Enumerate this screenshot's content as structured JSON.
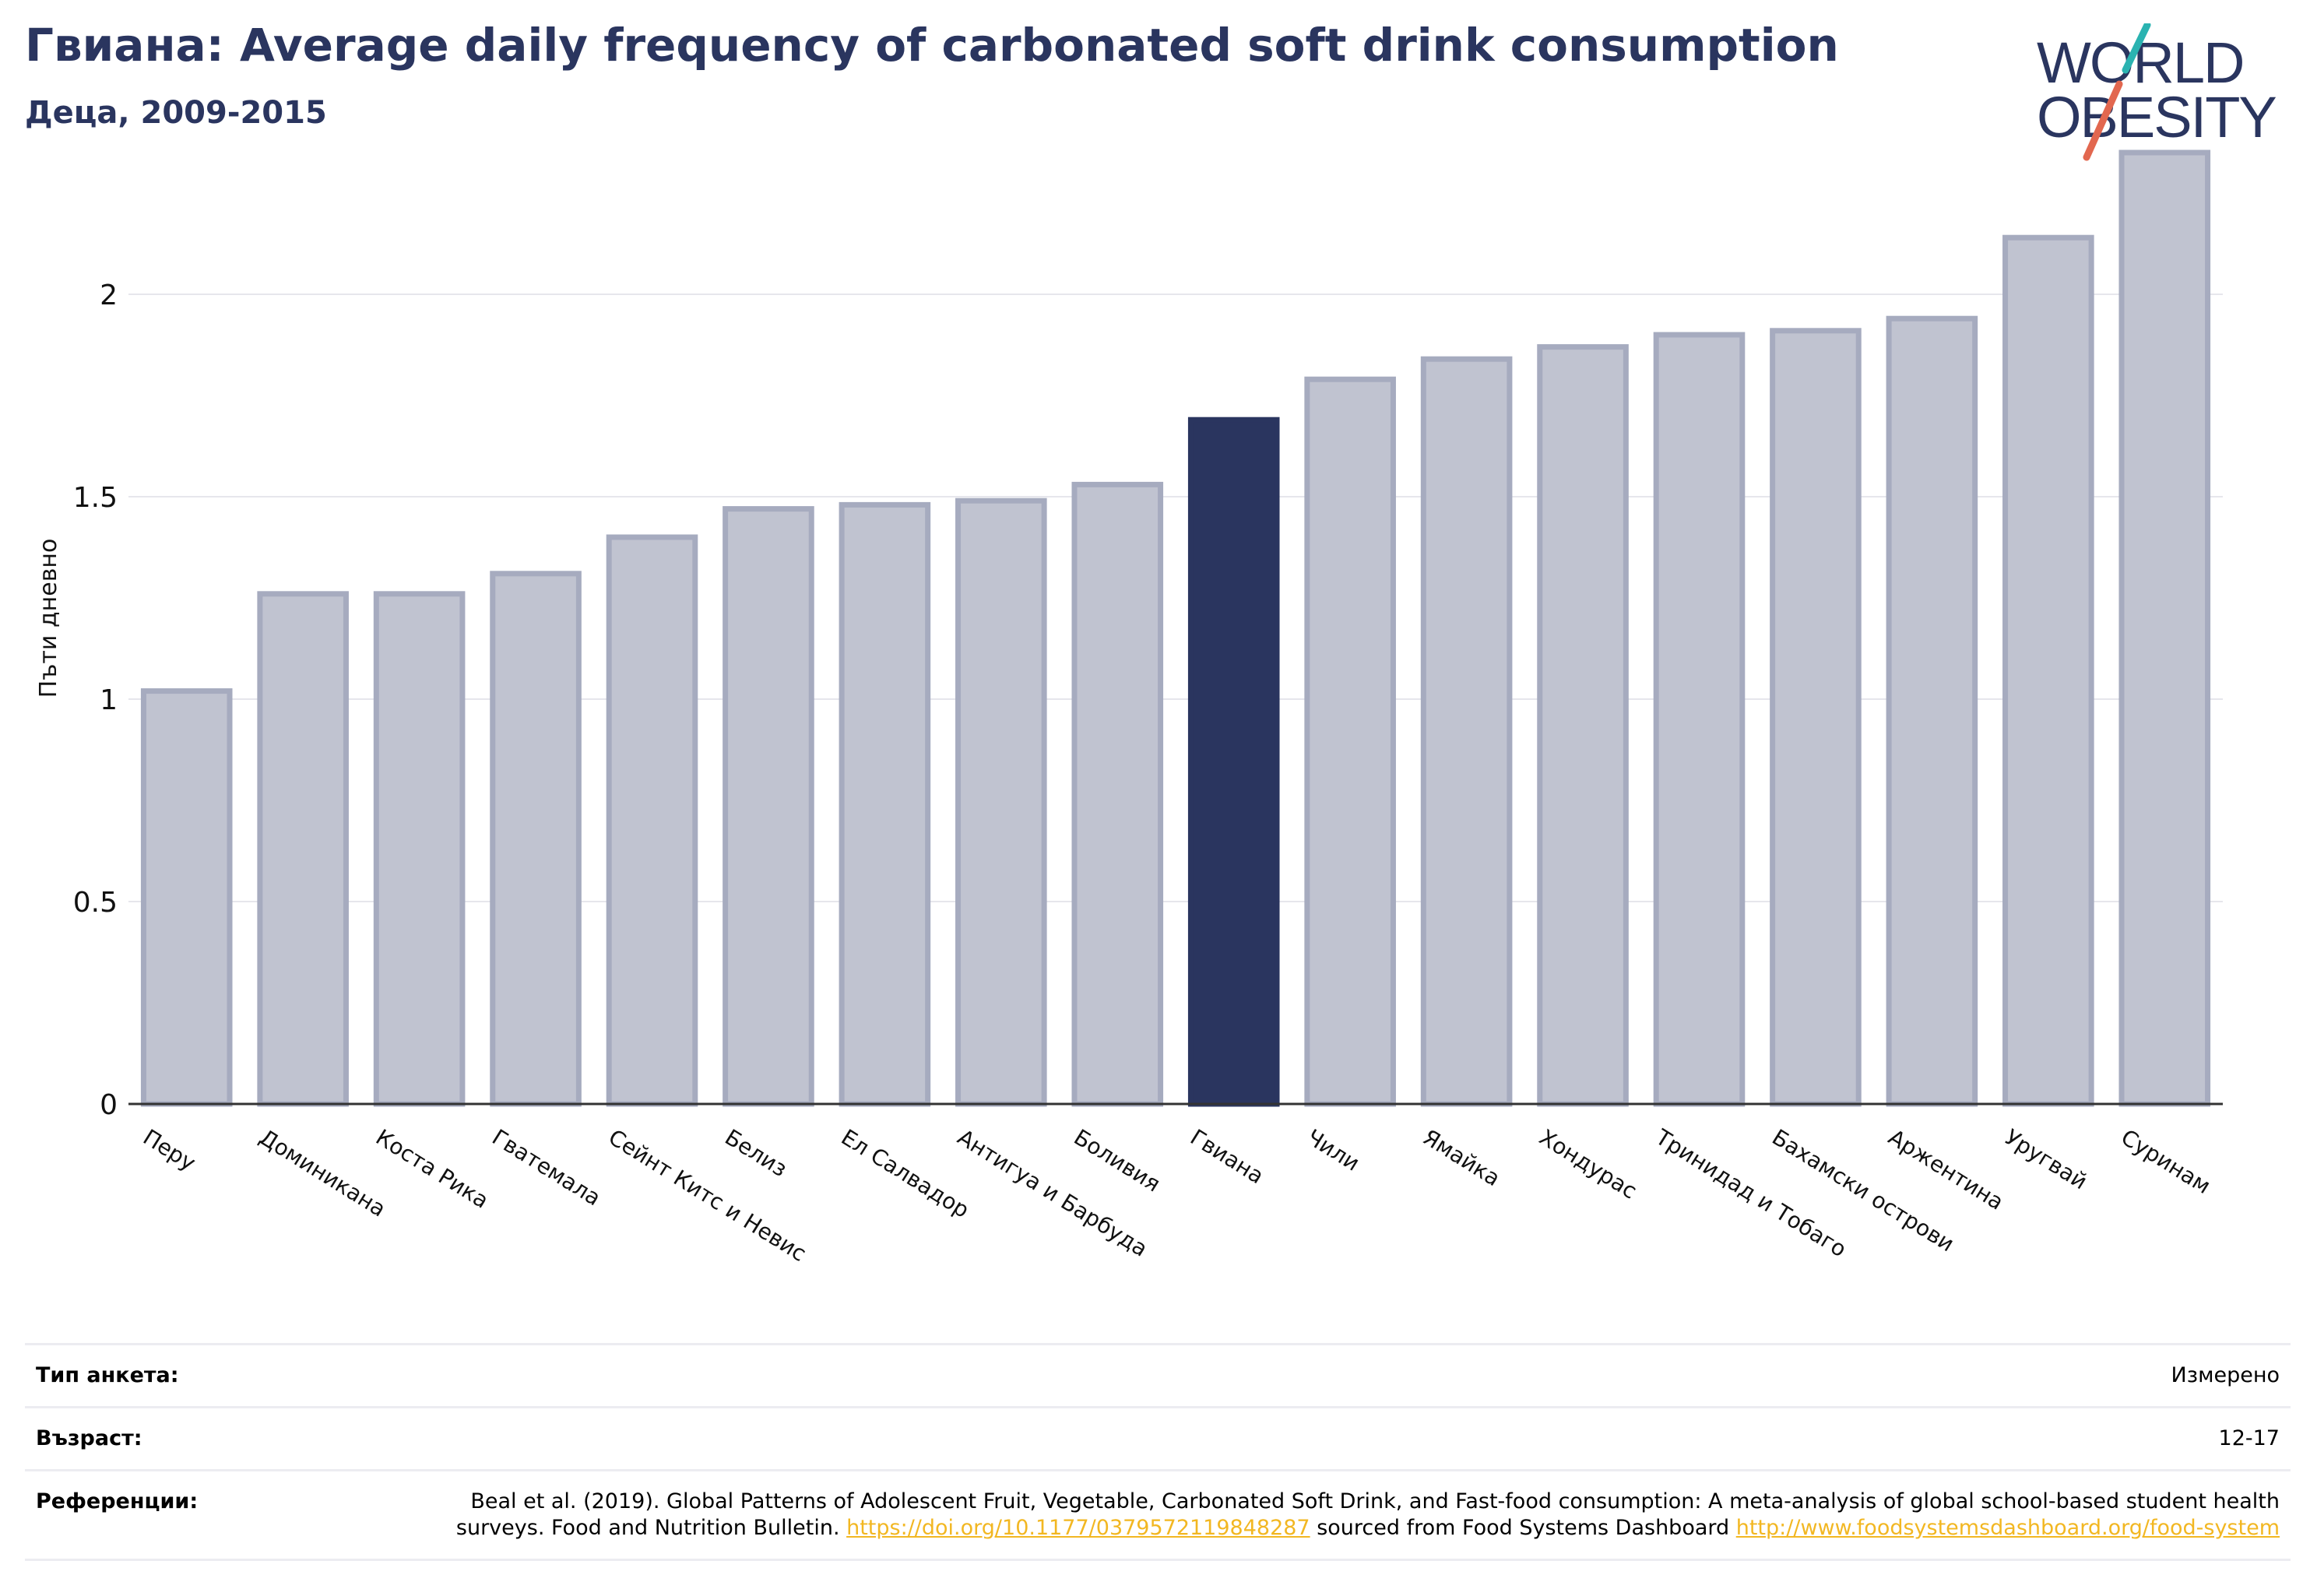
{
  "header": {
    "title": "Гвиана: Average daily frequency of carbonated soft drink consumption",
    "subtitle": "Деца, 2009-2015"
  },
  "logo": {
    "line1": "WORLD",
    "line2": "OBESITY",
    "colors": {
      "text": "#2a355f",
      "slash_top": "#2ab3b1",
      "slash_bottom": "#e2674f"
    }
  },
  "chart_data": {
    "type": "bar",
    "ylabel": "Пъти дневно",
    "xlabel": "",
    "ylim": [
      0,
      2.4
    ],
    "yticks": [
      0,
      0.5,
      1,
      1.5,
      2
    ],
    "ytick_labels": [
      "0",
      "0.5",
      "1",
      "1.5",
      "2"
    ],
    "grid": true,
    "categories": [
      "Перу",
      "Доминикана",
      "Коста Рика",
      "Гватемала",
      "Сейнт Китс и Невис",
      "Белиз",
      "Ел Салвадор",
      "Антигуа и Барбуда",
      "Боливия",
      "Гвиана",
      "Чили",
      "Ямайка",
      "Хондурас",
      "Тринидад и Тобаго",
      "Бахамски острови",
      "Аржентина",
      "Уругвай",
      "Суринам"
    ],
    "values": [
      1.02,
      1.26,
      1.26,
      1.31,
      1.4,
      1.47,
      1.48,
      1.49,
      1.53,
      1.69,
      1.79,
      1.84,
      1.87,
      1.9,
      1.91,
      1.94,
      2.14,
      2.35
    ],
    "highlight": "Гвиана",
    "colors": {
      "bar": "#c0c3d0",
      "bar_border": "#a6abbf",
      "highlight": "#2a355f"
    }
  },
  "footer": {
    "survey_type": {
      "label": "Тип анкета:",
      "value": "Измерено"
    },
    "age": {
      "label": "Възраст:",
      "value": "12-17"
    },
    "references": {
      "label": "Референции:",
      "text1": "Beal et al. (2019). Global Patterns of Adolescent Fruit, Vegetable, Carbonated Soft Drink, and Fast-food consumption: A meta-analysis of global school-based student health surveys. Food and Nutrition Bulletin. ",
      "link1": "https://doi.org/10.1177/0379572119848287",
      "text2": " sourced from Food Systems Dashboard ",
      "link2": "http://www.foodsystemsdashboard.org/food-system"
    }
  }
}
